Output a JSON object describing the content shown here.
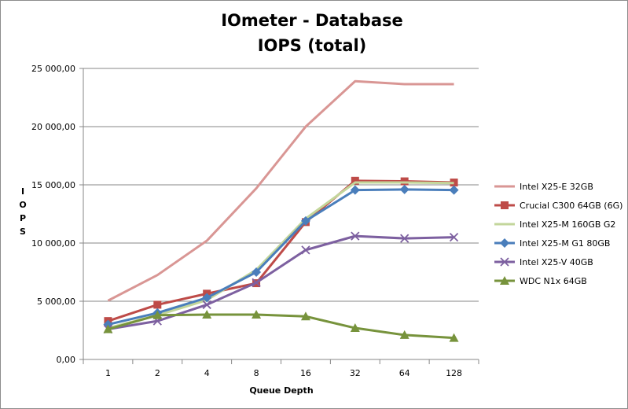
{
  "chart_data": {
    "type": "line",
    "title": "IOmeter - Database",
    "subtitle": "IOPS (total)",
    "xlabel": "Queue Depth",
    "ylabel": "IOPS",
    "categories": [
      "1",
      "2",
      "4",
      "8",
      "16",
      "32",
      "64",
      "128"
    ],
    "ylim": [
      0,
      25000
    ],
    "yticks": [
      0,
      5000,
      10000,
      15000,
      20000,
      25000
    ],
    "ytick_labels": [
      "0,00",
      "5 000,00",
      "10 000,00",
      "15 000,00",
      "20 000,00",
      "25 000,00"
    ],
    "grid": true,
    "legend_position": "right",
    "series": [
      {
        "name": "Intel X25-E 32GB",
        "color": "#d99694",
        "marker": "none",
        "values": [
          5050,
          7250,
          10200,
          14700,
          20000,
          23900,
          23650,
          23650
        ]
      },
      {
        "name": "Crucial C300 64GB (6G)",
        "color": "#be4b48",
        "marker": "square",
        "values": [
          3300,
          4700,
          5650,
          6550,
          11800,
          15350,
          15300,
          15200
        ]
      },
      {
        "name": "Intel X25-M 160GB G2",
        "color": "#c3d69b",
        "marker": "none",
        "values": [
          2700,
          3800,
          5100,
          7700,
          12100,
          15200,
          15200,
          15150
        ]
      },
      {
        "name": "Intel X25-M G1 80GB",
        "color": "#4a7ebb",
        "marker": "diamond",
        "values": [
          3000,
          4000,
          5300,
          7500,
          11900,
          14550,
          14600,
          14550
        ]
      },
      {
        "name": "Intel X25-V 40GB",
        "color": "#7d60a0",
        "marker": "x",
        "values": [
          2600,
          3300,
          4700,
          6600,
          9400,
          10600,
          10400,
          10500
        ]
      },
      {
        "name": "WDC N1x 64GB",
        "color": "#77933c",
        "marker": "triangle",
        "values": [
          2600,
          3800,
          3850,
          3850,
          3700,
          2700,
          2100,
          1850
        ]
      }
    ]
  }
}
